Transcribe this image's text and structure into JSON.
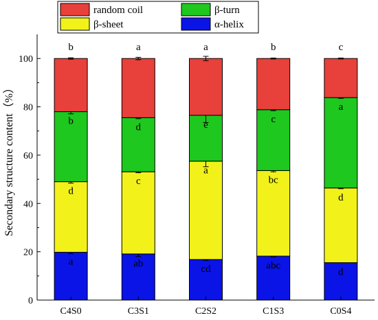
{
  "chart_data": {
    "type": "bar",
    "stacked": true,
    "categories": [
      "C4S0",
      "C3S1",
      "C2S2",
      "C1S3",
      "C0S4"
    ],
    "ylabel": "Secondary structure content（%）",
    "ylim": [
      0,
      110
    ],
    "yticks": [
      0,
      20,
      40,
      60,
      80,
      100
    ],
    "series": [
      {
        "name": "α-helix",
        "color": "#0a14e6",
        "values": [
          19.8,
          19.1,
          16.8,
          18.2,
          15.5
        ],
        "errors": [
          0.6,
          1.1,
          0.3,
          0.3,
          0
        ],
        "letters": [
          "a",
          "ab",
          "cd",
          "abc",
          "d"
        ]
      },
      {
        "name": "β-sheet",
        "color": "#f2f21a",
        "values": [
          29.2,
          34.0,
          40.7,
          35.4,
          30.9
        ],
        "errors": [
          0.6,
          0.4,
          2.3,
          0.5,
          0.3
        ],
        "letters": [
          "d",
          "c",
          "a",
          "bc",
          "d"
        ]
      },
      {
        "name": "β-turn",
        "color": "#1ec81e",
        "values": [
          29.0,
          22.4,
          19.0,
          25.2,
          37.4
        ],
        "errors": [
          0.9,
          0.4,
          3.0,
          0.4,
          0.3
        ],
        "letters": [
          "b",
          "d",
          "e",
          "c",
          "a"
        ]
      },
      {
        "name": "random coil",
        "color": "#e8403a",
        "values": [
          22.0,
          24.5,
          23.5,
          21.2,
          16.2
        ],
        "errors": [
          0.3,
          0.5,
          0.9,
          0.2,
          0.2
        ],
        "letters": [
          "b",
          "a",
          "a",
          "b",
          "c"
        ]
      }
    ],
    "legend_order": [
      "random coil",
      "β-turn",
      "β-sheet",
      "α-helix"
    ],
    "legend_position": "top",
    "grid": false
  }
}
